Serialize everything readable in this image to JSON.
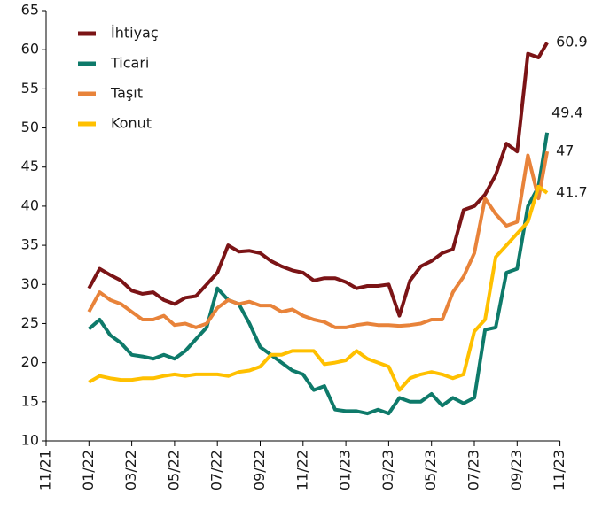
{
  "chart_data": {
    "type": "line",
    "x": [
      2,
      2.5,
      3,
      3.5,
      4,
      4.5,
      5,
      5.5,
      6,
      6.5,
      7,
      7.5,
      8,
      8.5,
      9,
      9.5,
      10,
      10.5,
      11,
      11.5,
      12,
      12.5,
      13,
      13.5,
      14,
      14.5,
      15,
      15.5,
      16,
      16.5,
      17,
      17.5,
      18,
      18.5,
      19,
      19.5,
      20,
      20.5,
      21,
      21.5,
      22,
      22.5,
      23,
      23.4
    ],
    "series": [
      {
        "name": "İhtiyaç",
        "color": "#7b1416",
        "values": [
          29.5,
          32,
          31.2,
          30.5,
          29.2,
          28.8,
          29,
          28,
          27.5,
          28.3,
          28.5,
          30,
          31.5,
          35,
          34.2,
          34.3,
          34,
          33,
          32.3,
          31.8,
          31.5,
          30.5,
          30.8,
          30.8,
          30.3,
          29.5,
          29.8,
          29.8,
          30,
          26,
          30.5,
          32.3,
          33,
          34,
          34.5,
          39.5,
          40,
          41.5,
          44,
          48,
          47,
          59.5,
          59,
          60.9
        ]
      },
      {
        "name": "Ticari",
        "color": "#0e7a6a",
        "values": [
          24.3,
          25.5,
          23.5,
          22.5,
          21,
          20.8,
          20.5,
          21,
          20.5,
          21.5,
          23,
          24.5,
          29.5,
          28,
          27.5,
          25,
          22,
          21,
          20,
          19,
          18.5,
          16.5,
          17,
          14,
          13.8,
          13.8,
          13.5,
          14,
          13.5,
          15.5,
          15,
          15,
          16,
          14.5,
          15.5,
          14.8,
          15.5,
          24.2,
          24.5,
          31.5,
          32,
          40,
          42.5,
          49.4
        ]
      },
      {
        "name": "Taşıt",
        "color": "#e8833a",
        "values": [
          26.5,
          29,
          28,
          27.5,
          26.5,
          25.5,
          25.5,
          26,
          24.8,
          25,
          24.5,
          25,
          27,
          28,
          27.5,
          27.8,
          27.3,
          27.3,
          26.5,
          26.8,
          26,
          25.5,
          25.2,
          24.5,
          24.5,
          24.8,
          25,
          24.8,
          24.8,
          24.7,
          24.8,
          25,
          25.5,
          25.5,
          29,
          31,
          34,
          41,
          39,
          37.5,
          38,
          46.5,
          41,
          47.0
        ]
      },
      {
        "name": "Konut",
        "color": "#ffc000",
        "values": [
          17.5,
          18.3,
          18,
          17.8,
          17.8,
          18,
          18,
          18.3,
          18.5,
          18.3,
          18.5,
          18.5,
          18.5,
          18.3,
          18.8,
          19,
          19.5,
          21,
          21,
          21.5,
          21.5,
          21.5,
          19.8,
          20,
          20.3,
          21.5,
          20.5,
          20,
          19.5,
          16.5,
          18,
          18.5,
          18.8,
          18.5,
          18,
          18.5,
          24,
          25.5,
          33.5,
          35,
          36.5,
          38,
          42.5,
          41.7
        ]
      }
    ],
    "xlim": [
      0,
      24
    ],
    "xticks": [
      {
        "value": 0,
        "label": "11/21"
      },
      {
        "value": 2,
        "label": "01/22"
      },
      {
        "value": 4,
        "label": "03/22"
      },
      {
        "value": 6,
        "label": "05/22"
      },
      {
        "value": 8,
        "label": "07/22"
      },
      {
        "value": 10,
        "label": "09/22"
      },
      {
        "value": 12,
        "label": "11/22"
      },
      {
        "value": 14,
        "label": "01/23"
      },
      {
        "value": 16,
        "label": "03/23"
      },
      {
        "value": 18,
        "label": "05/23"
      },
      {
        "value": 20,
        "label": "07/23"
      },
      {
        "value": 22,
        "label": "09/23"
      },
      {
        "value": 24,
        "label": "11/23"
      }
    ],
    "ylim": [
      10,
      65
    ],
    "yticks": [
      10,
      15,
      20,
      25,
      30,
      35,
      40,
      45,
      50,
      55,
      60,
      65
    ],
    "legend": "top-left"
  }
}
